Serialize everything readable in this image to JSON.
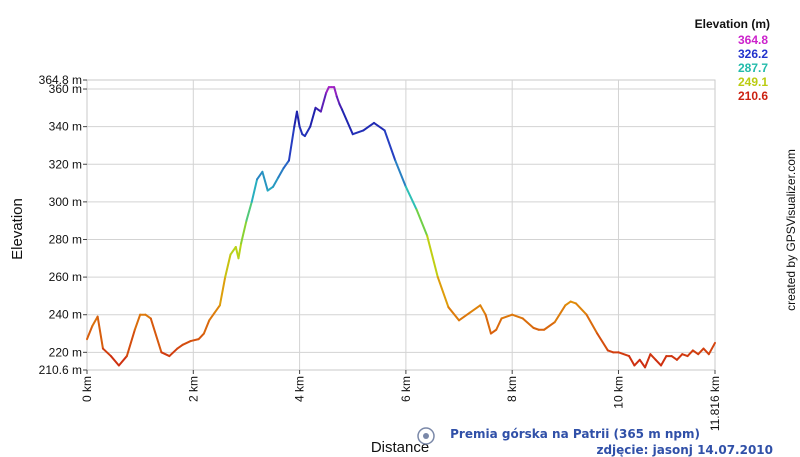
{
  "chart_data": {
    "type": "line",
    "title": "",
    "xlabel": "Distance",
    "ylabel": "Elevation",
    "x_unit": "km",
    "y_unit": "m",
    "xlim": [
      0,
      11.816
    ],
    "ylim": [
      210.6,
      364.8
    ],
    "x_ticks": [
      "0 km",
      "2 km",
      "4 km",
      "6 km",
      "8 km",
      "10 km",
      "11.816 km"
    ],
    "y_ticks": [
      "364.8 m",
      "360 m",
      "340 m",
      "320 m",
      "300 m",
      "280 m",
      "260 m",
      "240 m",
      "220 m",
      "210.6 m"
    ],
    "grid": true,
    "legend": {
      "title": "Elevation (m)",
      "placement": "top-right",
      "entries": [
        {
          "label": "364.8",
          "color": "#cc22cc"
        },
        {
          "label": "326.2",
          "color": "#2233cc"
        },
        {
          "label": "287.7",
          "color": "#22bbaa"
        },
        {
          "label": "249.1",
          "color": "#bbcc11"
        },
        {
          "label": "210.6",
          "color": "#cc2211"
        }
      ]
    },
    "series": [
      {
        "x": [
          0,
          0.1,
          0.2,
          0.3,
          0.45,
          0.6,
          0.75,
          0.9,
          1.0,
          1.1,
          1.2,
          1.4,
          1.55,
          1.7,
          1.8,
          1.95,
          2.1,
          2.2,
          2.3,
          2.4,
          2.5,
          2.6,
          2.7,
          2.8,
          2.85,
          2.9,
          3.0,
          3.1,
          3.2,
          3.3,
          3.4,
          3.5,
          3.6,
          3.7,
          3.8,
          3.9,
          3.95,
          4.0,
          4.05,
          4.1,
          4.2,
          4.3,
          4.4,
          4.5,
          4.55,
          4.6,
          4.65,
          4.7,
          4.75,
          4.8,
          5.0,
          5.2,
          5.4,
          5.6,
          5.8,
          6.0,
          6.2,
          6.4,
          6.6,
          6.8,
          7.0,
          7.2,
          7.4,
          7.5,
          7.6,
          7.7,
          7.8,
          8.0,
          8.2,
          8.4,
          8.5,
          8.6,
          8.8,
          9.0,
          9.1,
          9.2,
          9.4,
          9.6,
          9.8,
          9.9,
          10.0,
          10.2,
          10.3,
          10.4,
          10.5,
          10.6,
          10.7,
          10.8,
          10.9,
          11.0,
          11.1,
          11.2,
          11.3,
          11.4,
          11.5,
          11.6,
          11.7,
          11.816
        ],
        "y": [
          227,
          234,
          239,
          222,
          218,
          213,
          218,
          232,
          240,
          240,
          238,
          220,
          218,
          222,
          224,
          226,
          227,
          230,
          237,
          241,
          245,
          260,
          272,
          276,
          270,
          278,
          290,
          300,
          312,
          316,
          306,
          308,
          313,
          318,
          322,
          340,
          348,
          340,
          336,
          335,
          340,
          350,
          348,
          358,
          361,
          361,
          361,
          356,
          352,
          349,
          336,
          338,
          342,
          338,
          322,
          308,
          296,
          282,
          260,
          244,
          237,
          241,
          245,
          240,
          230,
          232,
          238,
          240,
          238,
          233,
          232,
          232,
          236,
          245,
          247,
          246,
          240,
          230,
          221,
          220,
          220,
          218,
          213,
          216,
          212,
          219,
          216,
          213,
          218,
          218,
          216,
          219,
          218,
          221,
          219,
          222,
          219,
          225
        ]
      }
    ]
  },
  "credit": "created by GPSVisualizer.com",
  "caption": {
    "line1": "Premia górska na Patrii (365 m npm)",
    "line2": "zdjęcie: jasonj 14.07.2010"
  }
}
